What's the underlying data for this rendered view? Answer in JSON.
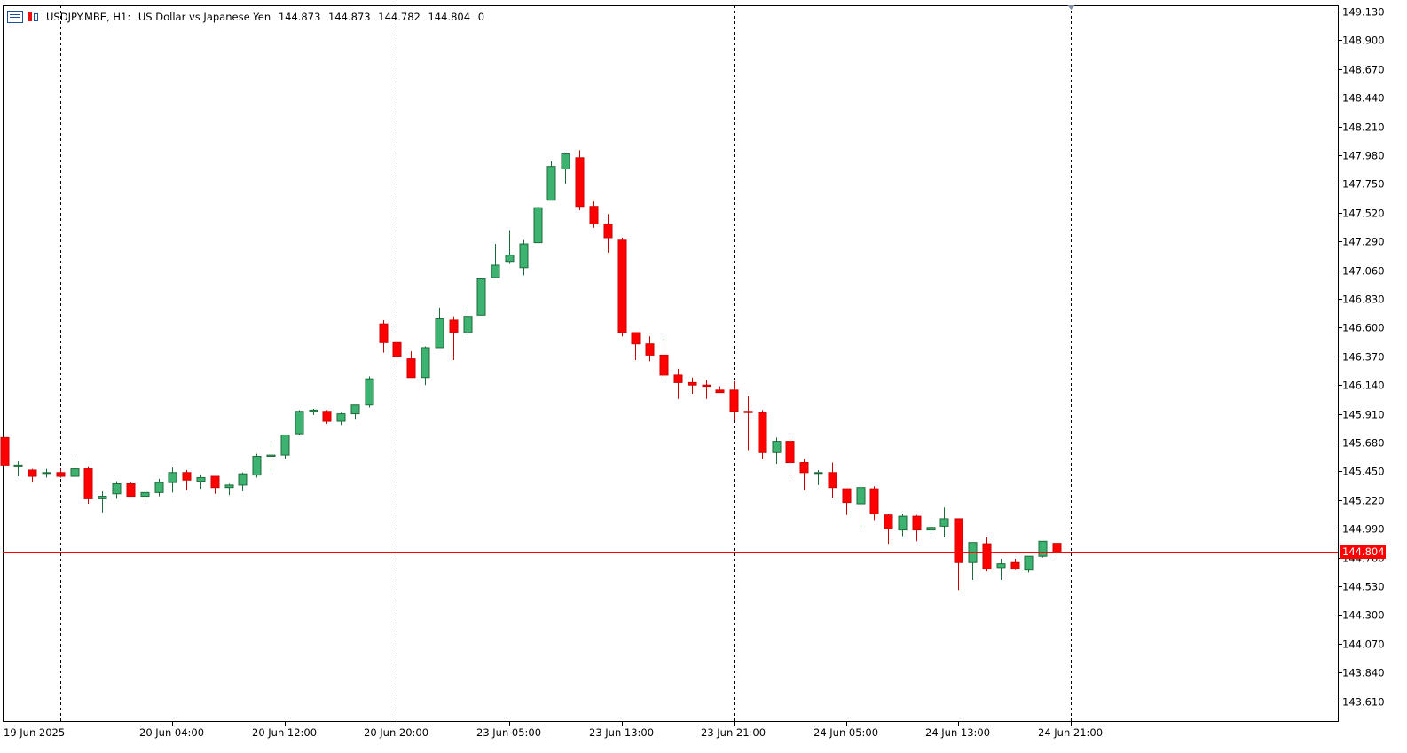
{
  "header": {
    "symbol": "USDJPY.MBE, H1:",
    "description": "US Dollar vs Japanese Yen",
    "open": "144.873",
    "high": "144.873",
    "low": "144.782",
    "close": "144.804",
    "volume": "0",
    "icons": [
      "list-icon",
      "candlestick-icon"
    ]
  },
  "price_tag": "144.804",
  "colors": {
    "bull": "#3cb371",
    "bear": "#ff0000",
    "current_price_line": "#ff0000"
  },
  "chart_data": {
    "type": "candlestick",
    "title": "USDJPY.MBE, H1",
    "ylim": [
      143.45,
      149.18
    ],
    "y_ticks": [
      "149.130",
      "148.900",
      "148.670",
      "148.440",
      "148.210",
      "147.980",
      "147.750",
      "147.520",
      "147.290",
      "147.060",
      "146.830",
      "146.600",
      "146.370",
      "146.140",
      "145.910",
      "145.680",
      "145.450",
      "145.220",
      "144.990",
      "144.760",
      "144.530",
      "144.300",
      "144.070",
      "143.840",
      "143.610"
    ],
    "x_labels": [
      "19 Jun 2025",
      "20 Jun 04:00",
      "20 Jun 12:00",
      "20 Jun 20:00",
      "23 Jun 05:00",
      "23 Jun 13:00",
      "23 Jun 21:00",
      "24 Jun 05:00",
      "24 Jun 13:00",
      "24 Jun 21:00"
    ],
    "period_separators": [
      4,
      28,
      52,
      76
    ],
    "current_price": 144.804,
    "candles": [
      [
        145.72,
        145.72,
        145.52,
        145.5
      ],
      [
        145.49,
        145.53,
        145.41,
        145.5
      ],
      [
        145.46,
        145.47,
        145.36,
        145.41
      ],
      [
        145.44,
        145.47,
        145.4,
        145.44
      ],
      [
        145.44,
        145.47,
        145.4,
        145.41
      ],
      [
        145.41,
        145.54,
        145.41,
        145.47
      ],
      [
        145.47,
        145.49,
        145.19,
        145.23
      ],
      [
        145.23,
        145.29,
        145.12,
        145.25
      ],
      [
        145.27,
        145.37,
        145.23,
        145.35
      ],
      [
        145.35,
        145.36,
        145.25,
        145.25
      ],
      [
        145.25,
        145.3,
        145.21,
        145.28
      ],
      [
        145.28,
        145.39,
        145.25,
        145.36
      ],
      [
        145.36,
        145.48,
        145.28,
        145.44
      ],
      [
        145.44,
        145.46,
        145.3,
        145.38
      ],
      [
        145.37,
        145.42,
        145.31,
        145.4
      ],
      [
        145.41,
        145.41,
        145.27,
        145.32
      ],
      [
        145.32,
        145.35,
        145.26,
        145.34
      ],
      [
        145.34,
        145.44,
        145.29,
        145.43
      ],
      [
        145.42,
        145.59,
        145.4,
        145.57
      ],
      [
        145.57,
        145.67,
        145.45,
        145.58
      ],
      [
        145.58,
        145.74,
        145.55,
        145.74
      ],
      [
        145.75,
        145.94,
        145.74,
        145.93
      ],
      [
        145.93,
        145.95,
        145.9,
        145.94
      ],
      [
        145.93,
        145.94,
        145.83,
        145.85
      ],
      [
        145.85,
        145.92,
        145.82,
        145.91
      ],
      [
        145.91,
        145.98,
        145.87,
        145.98
      ],
      [
        145.98,
        146.21,
        145.96,
        146.19
      ],
      [
        146.63,
        146.66,
        146.4,
        146.48
      ],
      [
        146.48,
        146.57,
        146.32,
        146.37
      ],
      [
        146.35,
        146.41,
        146.2,
        146.2
      ],
      [
        146.2,
        146.45,
        146.14,
        146.44
      ],
      [
        146.44,
        146.76,
        146.44,
        146.67
      ],
      [
        146.66,
        146.69,
        146.34,
        146.56
      ],
      [
        146.56,
        146.76,
        146.54,
        146.69
      ],
      [
        146.7,
        147.0,
        146.7,
        146.99
      ],
      [
        147.0,
        147.27,
        147.0,
        147.1
      ],
      [
        147.13,
        147.38,
        147.11,
        147.18
      ],
      [
        147.08,
        147.3,
        147.02,
        147.27
      ],
      [
        147.28,
        147.57,
        147.28,
        147.56
      ],
      [
        147.62,
        147.93,
        147.62,
        147.89
      ],
      [
        147.87,
        148.0,
        147.75,
        147.99
      ],
      [
        147.96,
        148.02,
        147.54,
        147.57
      ],
      [
        147.57,
        147.61,
        147.4,
        147.43
      ],
      [
        147.43,
        147.51,
        147.2,
        147.32
      ],
      [
        147.3,
        147.32,
        146.53,
        146.56
      ],
      [
        146.56,
        146.56,
        146.34,
        146.47
      ],
      [
        146.47,
        146.53,
        146.33,
        146.38
      ],
      [
        146.38,
        146.51,
        146.18,
        146.22
      ],
      [
        146.22,
        146.27,
        146.03,
        146.16
      ],
      [
        146.16,
        146.2,
        146.07,
        146.14
      ],
      [
        146.14,
        146.18,
        146.03,
        146.13
      ],
      [
        146.1,
        146.13,
        146.08,
        146.08
      ],
      [
        146.1,
        146.17,
        145.86,
        145.93
      ],
      [
        145.93,
        146.05,
        145.62,
        145.92
      ],
      [
        145.92,
        145.94,
        145.55,
        145.6
      ],
      [
        145.6,
        145.72,
        145.51,
        145.69
      ],
      [
        145.69,
        145.71,
        145.41,
        145.52
      ],
      [
        145.52,
        145.55,
        145.3,
        145.44
      ],
      [
        145.44,
        145.46,
        145.34,
        145.44
      ],
      [
        145.44,
        145.52,
        145.24,
        145.32
      ],
      [
        145.31,
        145.31,
        145.1,
        145.2
      ],
      [
        145.19,
        145.35,
        145.0,
        145.32
      ],
      [
        145.31,
        145.33,
        145.06,
        145.11
      ],
      [
        145.1,
        145.11,
        144.87,
        144.99
      ],
      [
        144.98,
        145.11,
        144.93,
        145.09
      ],
      [
        145.09,
        145.1,
        144.89,
        144.98
      ],
      [
        144.98,
        145.03,
        144.95,
        145.0
      ],
      [
        145.01,
        145.16,
        144.92,
        145.07
      ],
      [
        145.07,
        145.07,
        144.5,
        144.72
      ],
      [
        144.72,
        144.87,
        144.58,
        144.88
      ],
      [
        144.87,
        144.92,
        144.65,
        144.67
      ],
      [
        144.68,
        144.75,
        144.58,
        144.71
      ],
      [
        144.72,
        144.75,
        144.66,
        144.67
      ],
      [
        144.66,
        144.77,
        144.64,
        144.77
      ],
      [
        144.77,
        144.88,
        144.76,
        144.89
      ],
      [
        144.873,
        144.873,
        144.782,
        144.804
      ]
    ]
  }
}
